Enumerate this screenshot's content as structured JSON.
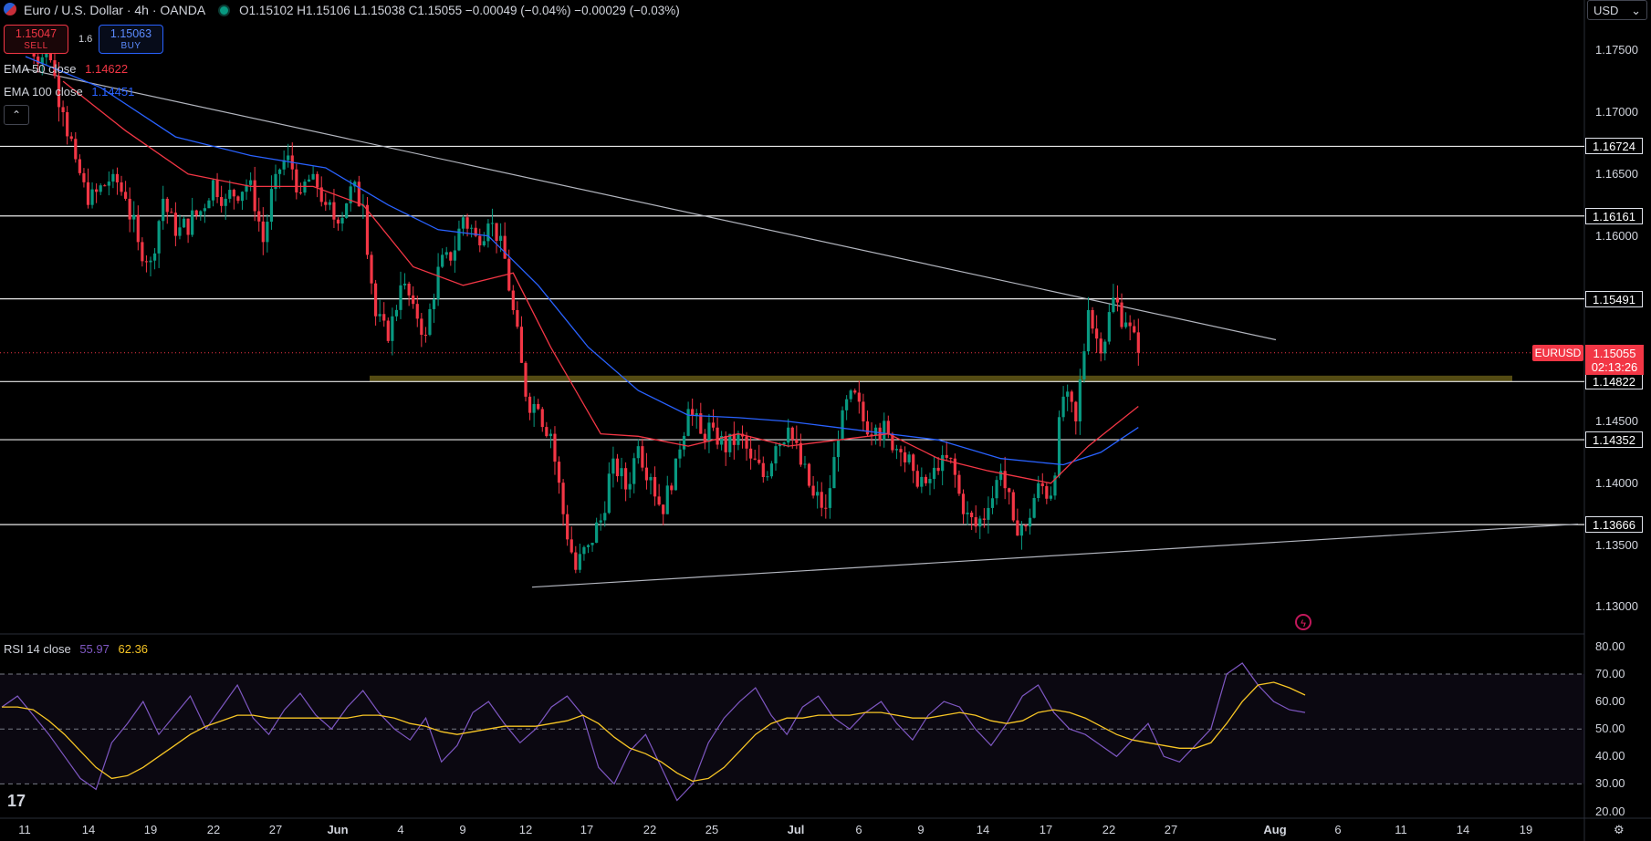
{
  "header": {
    "symbol_title": "Euro / U.S. Dollar · 4h · OANDA",
    "ohlc": "O1.15102 H1.15106 L1.15038 C1.15055 −0.00049 (−0.04%) −0.00029 (−0.03%)"
  },
  "trade": {
    "sell_price": "1.15047",
    "sell_label": "SELL",
    "spread": "1.6",
    "buy_price": "1.15063",
    "buy_label": "BUY"
  },
  "indicators": {
    "ema50_label": "EMA 50 close",
    "ema50_value": "1.14622",
    "ema100_label": "EMA 100 close",
    "ema100_value": "1.14451",
    "rsi_label": "RSI 14 close",
    "rsi_value": "55.97",
    "rsi_ma_value": "62.36"
  },
  "currency_selector": "USD",
  "current_price": {
    "symbol": "EURUSD",
    "price": "1.15055",
    "countdown": "02:13:26"
  },
  "price_axis_ticks": [
    "1.17500",
    "1.17000",
    "1.16500",
    "1.16000",
    "1.15500",
    "1.15000",
    "1.14500",
    "1.14000",
    "1.13500",
    "1.13000"
  ],
  "level_labels": [
    "1.16724",
    "1.16161",
    "1.15491",
    "1.14822",
    "1.14352",
    "1.13666"
  ],
  "rsi_axis_ticks": [
    "80.00",
    "70.00",
    "60.00",
    "50.00",
    "40.00",
    "30.00",
    "20.00"
  ],
  "time_axis": [
    "11",
    "14",
    "19",
    "22",
    "27",
    "Jun",
    "4",
    "9",
    "12",
    "17",
    "22",
    "25",
    "Jul",
    "6",
    "9",
    "14",
    "17",
    "22",
    "27",
    "Aug",
    "6",
    "11",
    "14",
    "19"
  ],
  "colors": {
    "up": "#089981",
    "down": "#f23645",
    "ema50": "#f23645",
    "ema100": "#2962ff",
    "rsi": "#7e57c2",
    "rsi_ma": "#f7c525",
    "zone": "#5d5315"
  },
  "chart_data": {
    "type": "candlestick",
    "timeframe": "4h",
    "ylim": [
      1.128,
      1.179
    ],
    "horizontal_levels": [
      1.16724,
      1.16161,
      1.15491,
      1.14822,
      1.14352,
      1.13666
    ],
    "support_zone": [
      1.14822,
      1.1487
    ],
    "descending_trendline": [
      {
        "x": "May 11",
        "y": 1.1735
      },
      {
        "x": "Aug 19",
        "y": 1.1516
      }
    ],
    "ascending_trendline": [
      {
        "x": "Jun 12",
        "y": 1.1316
      },
      {
        "x": "Aug 19",
        "y": 1.1367
      }
    ],
    "close_path": [
      {
        "x": "May 11",
        "y": 1.1755
      },
      {
        "x": "May 13",
        "y": 1.1742
      },
      {
        "x": "May 14",
        "y": 1.17
      },
      {
        "x": "May 15",
        "y": 1.1662
      },
      {
        "x": "May 16",
        "y": 1.1625
      },
      {
        "x": "May 18",
        "y": 1.165
      },
      {
        "x": "May 19",
        "y": 1.163
      },
      {
        "x": "May 20",
        "y": 1.1595
      },
      {
        "x": "May 21",
        "y": 1.158
      },
      {
        "x": "May 22",
        "y": 1.163
      },
      {
        "x": "May 23",
        "y": 1.16
      },
      {
        "x": "May 25",
        "y": 1.162
      },
      {
        "x": "May 26",
        "y": 1.1645
      },
      {
        "x": "May 27",
        "y": 1.163
      },
      {
        "x": "May 29",
        "y": 1.1645
      },
      {
        "x": "May 30",
        "y": 1.1595
      },
      {
        "x": "May 31",
        "y": 1.165
      },
      {
        "x": "Jun 1",
        "y": 1.1665
      },
      {
        "x": "Jun 2",
        "y": 1.1635
      },
      {
        "x": "Jun 3",
        "y": 1.165
      },
      {
        "x": "Jun 4",
        "y": 1.1625
      },
      {
        "x": "Jun 5",
        "y": 1.161
      },
      {
        "x": "Jun 6",
        "y": 1.164
      },
      {
        "x": "Jun 7",
        "y": 1.1625
      },
      {
        "x": "Jun 8",
        "y": 1.1535
      },
      {
        "x": "Jun 9",
        "y": 1.1515
      },
      {
        "x": "Jun 10",
        "y": 1.156
      },
      {
        "x": "Jun 11",
        "y": 1.1545
      },
      {
        "x": "Jun 12",
        "y": 1.152
      },
      {
        "x": "Jun 13",
        "y": 1.1575
      },
      {
        "x": "Jun 14",
        "y": 1.158
      },
      {
        "x": "Jun 15",
        "y": 1.1615
      },
      {
        "x": "Jun 16",
        "y": 1.16
      },
      {
        "x": "Jun 17",
        "y": 1.161
      },
      {
        "x": "Jun 18",
        "y": 1.16
      },
      {
        "x": "Jun 19",
        "y": 1.154
      },
      {
        "x": "Jun 20",
        "y": 1.147
      },
      {
        "x": "Jun 21",
        "y": 1.146
      },
      {
        "x": "Jun 22",
        "y": 1.144
      },
      {
        "x": "Jun 23",
        "y": 1.1375
      },
      {
        "x": "Jun 24",
        "y": 1.133
      },
      {
        "x": "Jun 25",
        "y": 1.135
      },
      {
        "x": "Jun 26",
        "y": 1.137
      },
      {
        "x": "Jun 27",
        "y": 1.142
      },
      {
        "x": "Jun 28",
        "y": 1.1395
      },
      {
        "x": "Jun 29",
        "y": 1.143
      },
      {
        "x": "Jun 30",
        "y": 1.1405
      },
      {
        "x": "Jul 1",
        "y": 1.1375
      },
      {
        "x": "Jul 2",
        "y": 1.142
      },
      {
        "x": "Jul 3",
        "y": 1.146
      },
      {
        "x": "Jul 4",
        "y": 1.144
      },
      {
        "x": "Jul 5",
        "y": 1.1445
      },
      {
        "x": "Jul 6",
        "y": 1.1425
      },
      {
        "x": "Jul 7",
        "y": 1.144
      },
      {
        "x": "Jul 8",
        "y": 1.142
      },
      {
        "x": "Jul 9",
        "y": 1.1405
      },
      {
        "x": "Jul 10",
        "y": 1.143
      },
      {
        "x": "Jul 11",
        "y": 1.1445
      },
      {
        "x": "Jul 12",
        "y": 1.1415
      },
      {
        "x": "Jul 13",
        "y": 1.139
      },
      {
        "x": "Jul 14",
        "y": 1.138
      },
      {
        "x": "Jul 15",
        "y": 1.1435
      },
      {
        "x": "Jul 16",
        "y": 1.1475
      },
      {
        "x": "Jul 17",
        "y": 1.145
      },
      {
        "x": "Jul 18",
        "y": 1.1445
      },
      {
        "x": "Jul 19",
        "y": 1.144
      },
      {
        "x": "Jul 20",
        "y": 1.1425
      },
      {
        "x": "Jul 21",
        "y": 1.141
      },
      {
        "x": "Jul 22",
        "y": 1.14
      },
      {
        "x": "Jul 23",
        "y": 1.141
      },
      {
        "x": "Jul 24",
        "y": 1.142
      },
      {
        "x": "Jul 25",
        "y": 1.1375
      },
      {
        "x": "Jul 26",
        "y": 1.1365
      },
      {
        "x": "Jul 27",
        "y": 1.138
      },
      {
        "x": "Jul 28",
        "y": 1.141
      },
      {
        "x": "Jul 29",
        "y": 1.137
      },
      {
        "x": "Jul 30",
        "y": 1.1365
      },
      {
        "x": "Jul 31",
        "y": 1.14
      },
      {
        "x": "Aug 1",
        "y": 1.139
      },
      {
        "x": "Aug 2",
        "y": 1.147
      },
      {
        "x": "Aug 3",
        "y": 1.145
      },
      {
        "x": "Aug 4",
        "y": 1.154
      },
      {
        "x": "Aug 5",
        "y": 1.1505
      },
      {
        "x": "Aug 6",
        "y": 1.155
      },
      {
        "x": "Aug 7",
        "y": 1.153
      },
      {
        "x": "Aug 8",
        "y": 1.15055
      }
    ],
    "ema50": [
      {
        "x": "May 14",
        "y": 1.1725
      },
      {
        "x": "May 19",
        "y": 1.1685
      },
      {
        "x": "May 24",
        "y": 1.165
      },
      {
        "x": "May 29",
        "y": 1.164
      },
      {
        "x": "Jun 3",
        "y": 1.164
      },
      {
        "x": "Jun 7",
        "y": 1.1625
      },
      {
        "x": "Jun 11",
        "y": 1.1575
      },
      {
        "x": "Jun 15",
        "y": 1.156
      },
      {
        "x": "Jun 19",
        "y": 1.157
      },
      {
        "x": "Jun 22",
        "y": 1.151
      },
      {
        "x": "Jun 26",
        "y": 1.144
      },
      {
        "x": "Jun 29",
        "y": 1.1438
      },
      {
        "x": "Jul 3",
        "y": 1.143
      },
      {
        "x": "Jul 7",
        "y": 1.144
      },
      {
        "x": "Jul 11",
        "y": 1.143
      },
      {
        "x": "Jul 15",
        "y": 1.1435
      },
      {
        "x": "Jul 19",
        "y": 1.144
      },
      {
        "x": "Jul 23",
        "y": 1.142
      },
      {
        "x": "Jul 27",
        "y": 1.141
      },
      {
        "x": "Aug 1",
        "y": 1.14
      },
      {
        "x": "Aug 4",
        "y": 1.143
      },
      {
        "x": "Aug 8",
        "y": 1.14622
      }
    ],
    "ema100": [
      {
        "x": "May 11",
        "y": 1.1745
      },
      {
        "x": "May 17",
        "y": 1.172
      },
      {
        "x": "May 23",
        "y": 1.168
      },
      {
        "x": "May 29",
        "y": 1.1665
      },
      {
        "x": "Jun 4",
        "y": 1.1655
      },
      {
        "x": "Jun 9",
        "y": 1.1625
      },
      {
        "x": "Jun 13",
        "y": 1.1605
      },
      {
        "x": "Jun 17",
        "y": 1.16
      },
      {
        "x": "Jun 21",
        "y": 1.156
      },
      {
        "x": "Jun 25",
        "y": 1.151
      },
      {
        "x": "Jun 29",
        "y": 1.1475
      },
      {
        "x": "Jul 3",
        "y": 1.1455
      },
      {
        "x": "Jul 7",
        "y": 1.1453
      },
      {
        "x": "Jul 11",
        "y": 1.145
      },
      {
        "x": "Jul 15",
        "y": 1.1445
      },
      {
        "x": "Jul 19",
        "y": 1.144
      },
      {
        "x": "Jul 23",
        "y": 1.1435
      },
      {
        "x": "Jul 28",
        "y": 1.142
      },
      {
        "x": "Aug 2",
        "y": 1.1415
      },
      {
        "x": "Aug 5",
        "y": 1.1425
      },
      {
        "x": "Aug 8",
        "y": 1.14451
      }
    ],
    "rsi": {
      "ylim": [
        20,
        80
      ],
      "overbought": 70,
      "oversold": 30,
      "midline": 50,
      "values": [
        58,
        62,
        55,
        48,
        40,
        32,
        28,
        45,
        52,
        60,
        48,
        55,
        62,
        50,
        58,
        66,
        54,
        48,
        57,
        63,
        55,
        50,
        58,
        64,
        56,
        50,
        46,
        54,
        38,
        44,
        56,
        60,
        52,
        45,
        50,
        58,
        62,
        55,
        36,
        30,
        42,
        48,
        36,
        24,
        30,
        45,
        54,
        60,
        65,
        55,
        48,
        58,
        62,
        54,
        50,
        56,
        60,
        52,
        46,
        55,
        60,
        58,
        50,
        44,
        52,
        62,
        66,
        56,
        50,
        48,
        44,
        40,
        46,
        52,
        40,
        38,
        44,
        50,
        70,
        74,
        66,
        60,
        57,
        56
      ],
      "ma_values": [
        58,
        58,
        57,
        53,
        48,
        42,
        36,
        32,
        33,
        36,
        40,
        44,
        48,
        51,
        53,
        55,
        55,
        54,
        54,
        54,
        54,
        54,
        54,
        55,
        55,
        54,
        52,
        51,
        49,
        48,
        49,
        50,
        51,
        51,
        51,
        52,
        53,
        55,
        52,
        47,
        43,
        41,
        38,
        34,
        31,
        32,
        36,
        42,
        48,
        52,
        54,
        54,
        55,
        55,
        55,
        56,
        56,
        55,
        54,
        54,
        55,
        56,
        55,
        53,
        52,
        53,
        56,
        57,
        56,
        54,
        51,
        48,
        46,
        45,
        44,
        43,
        43,
        45,
        52,
        60,
        66,
        67,
        65,
        62.36
      ]
    }
  }
}
